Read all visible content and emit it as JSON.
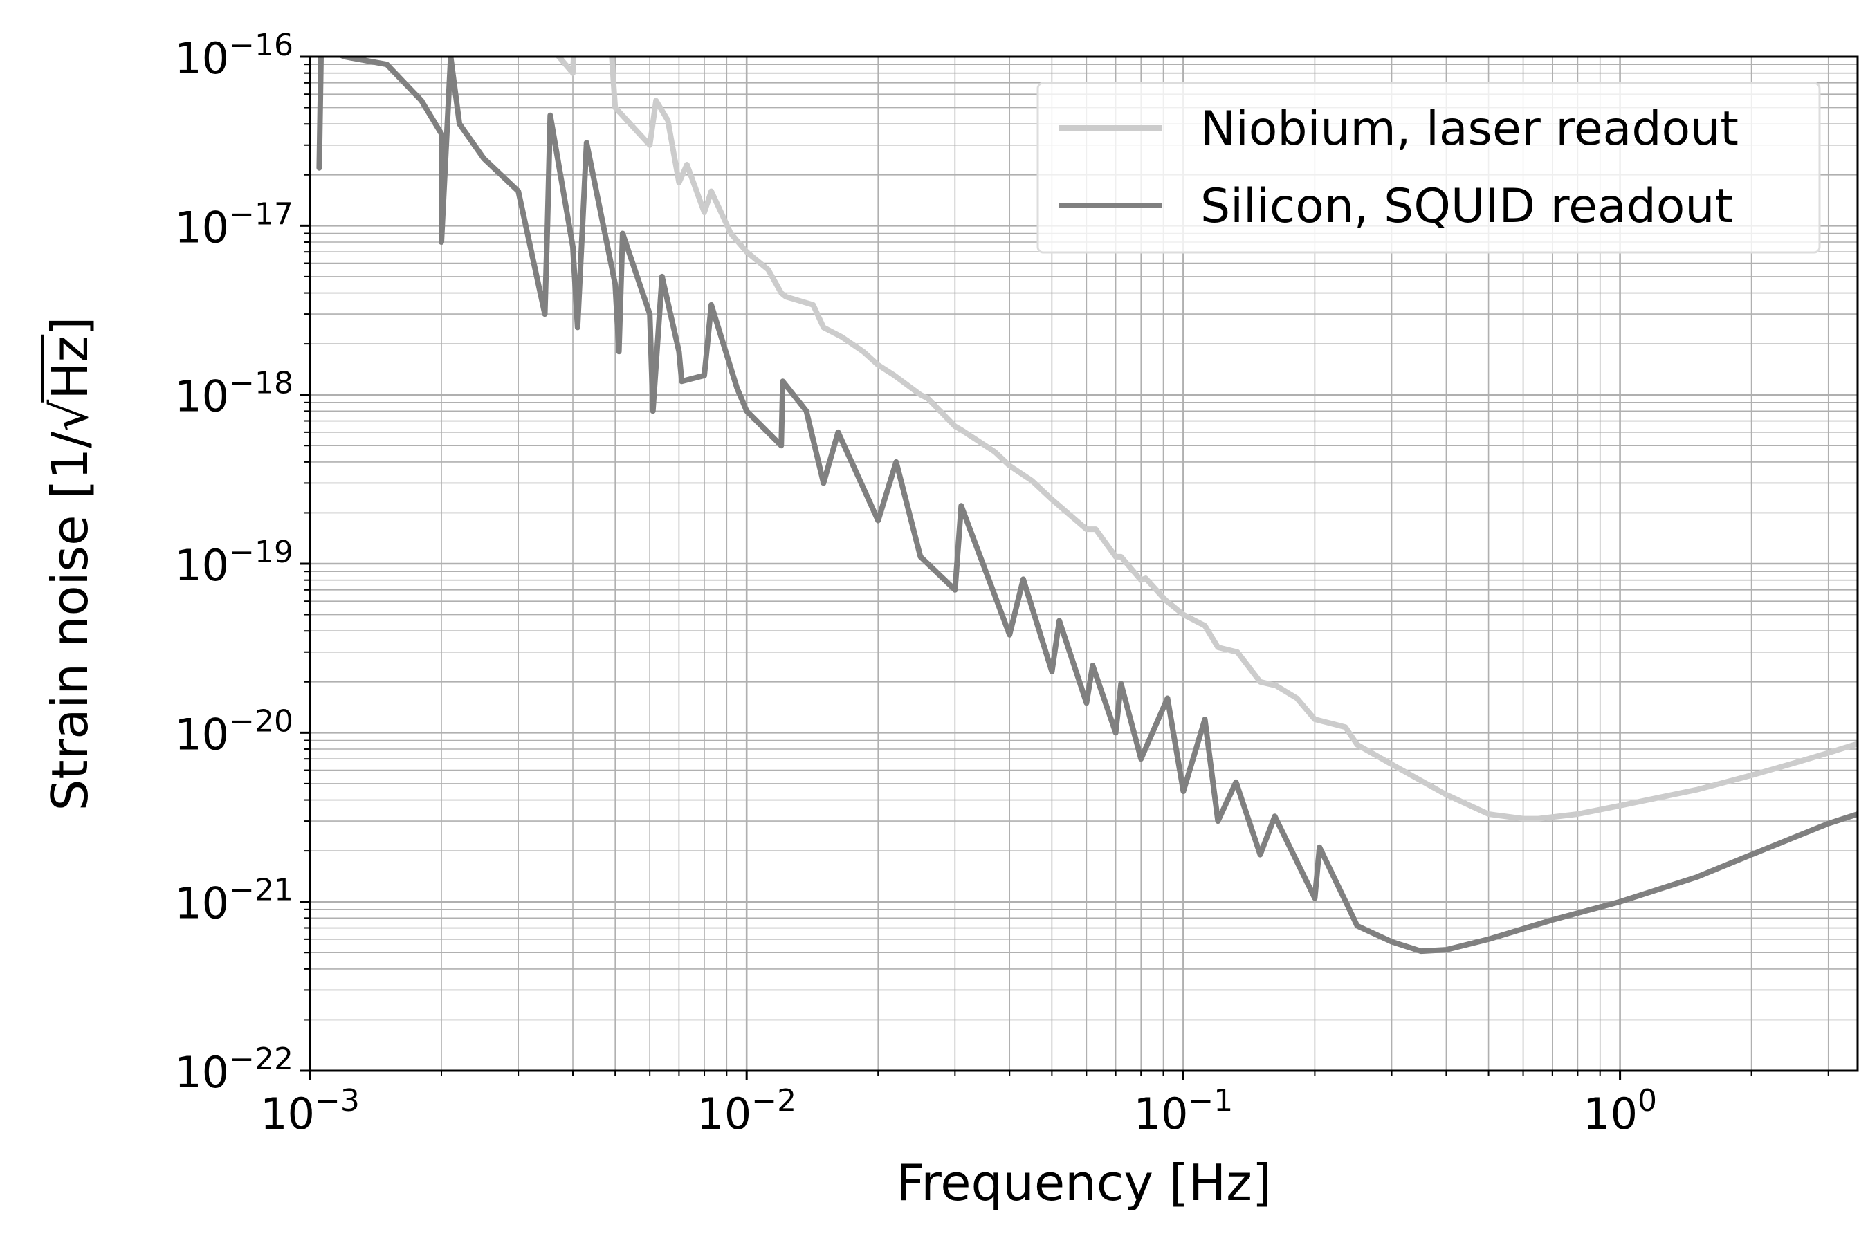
{
  "chart_data": {
    "type": "line",
    "xscale": "log",
    "yscale": "log",
    "xlim": [
      0.001,
      3.5
    ],
    "ylim": [
      1e-22,
      1e-16
    ],
    "xlabel": "Frequency [Hz]",
    "ylabel_prefix": "Strain noise [1/",
    "ylabel_radical": "√",
    "ylabel_radicand": "Hz",
    "ylabel_suffix": "]",
    "x_ticks": [
      {
        "value": 0.001,
        "base": "10",
        "exp": "−3"
      },
      {
        "value": 0.01,
        "base": "10",
        "exp": "−2"
      },
      {
        "value": 0.1,
        "base": "10",
        "exp": "−1"
      },
      {
        "value": 1,
        "base": "10",
        "exp": "0"
      }
    ],
    "y_ticks": [
      {
        "value": 1e-22,
        "base": "10",
        "exp": "−22"
      },
      {
        "value": 1e-21,
        "base": "10",
        "exp": "−21"
      },
      {
        "value": 1e-20,
        "base": "10",
        "exp": "−20"
      },
      {
        "value": 1e-19,
        "base": "10",
        "exp": "−19"
      },
      {
        "value": 1e-18,
        "base": "10",
        "exp": "−18"
      },
      {
        "value": 1e-17,
        "base": "10",
        "exp": "−17"
      },
      {
        "value": 1e-16,
        "base": "10",
        "exp": "−16"
      }
    ],
    "grid": {
      "major": true,
      "minor": true
    },
    "legend_position": "top-right",
    "series": [
      {
        "name": "Niobium, laser readout",
        "color": "#cccccc",
        "points": [
          [
            0.0035,
            1.2e-16
          ],
          [
            0.004,
            8e-17
          ],
          [
            0.005,
            5e-17
          ],
          [
            0.006,
            3e-17
          ],
          [
            0.007,
            1.8e-17
          ],
          [
            0.008,
            1.2e-17
          ],
          [
            0.01,
            7e-18
          ],
          [
            0.012,
            4e-18
          ],
          [
            0.015,
            2.5e-18
          ],
          [
            0.02,
            1.5e-18
          ],
          [
            0.025,
            1e-18
          ],
          [
            0.03,
            6.5e-19
          ],
          [
            0.04,
            3.8e-19
          ],
          [
            0.05,
            2.4e-19
          ],
          [
            0.06,
            1.6e-19
          ],
          [
            0.07,
            1.1e-19
          ],
          [
            0.08,
            8e-20
          ],
          [
            0.1,
            5e-20
          ],
          [
            0.12,
            3.2e-20
          ],
          [
            0.15,
            2e-20
          ],
          [
            0.2,
            1.2e-20
          ],
          [
            0.25,
            8.5e-21
          ],
          [
            0.3,
            6.5e-21
          ],
          [
            0.4,
            4.3e-21
          ],
          [
            0.5,
            3.3e-21
          ],
          [
            0.6,
            3.1e-21
          ],
          [
            0.65,
            3.1e-21
          ],
          [
            0.8,
            3.3e-21
          ],
          [
            1,
            3.7e-21
          ],
          [
            1.5,
            4.6e-21
          ],
          [
            2,
            5.6e-21
          ],
          [
            2.5,
            6.6e-21
          ],
          [
            3,
            7.6e-21
          ],
          [
            3.5,
            8.6e-21
          ]
        ],
        "spikes": [
          [
            0.0041,
            3e-16
          ],
          [
            0.0046,
            2e-16
          ],
          [
            0.0049,
            1.1e-16
          ],
          [
            0.0062,
            5.5e-17
          ],
          [
            0.0066,
            4.2e-17
          ],
          [
            0.0073,
            2.3e-17
          ],
          [
            0.0083,
            1.6e-17
          ],
          [
            0.0092,
            9e-18
          ],
          [
            0.0112,
            5.5e-18
          ],
          [
            0.0123,
            3.8e-18
          ],
          [
            0.0142,
            3.4e-18
          ],
          [
            0.0165,
            2.2e-18
          ],
          [
            0.0185,
            1.8e-18
          ],
          [
            0.0218,
            1.3e-18
          ],
          [
            0.026,
            9.5e-19
          ],
          [
            0.031,
            6.2e-19
          ],
          [
            0.037,
            4.6e-19
          ],
          [
            0.045,
            3.1e-19
          ],
          [
            0.052,
            2.2e-19
          ],
          [
            0.063,
            1.6e-19
          ],
          [
            0.072,
            1.1e-19
          ],
          [
            0.082,
            8.2e-20
          ],
          [
            0.091,
            6.1e-20
          ],
          [
            0.112,
            4.3e-20
          ],
          [
            0.133,
            3e-20
          ],
          [
            0.163,
            1.9e-20
          ],
          [
            0.182,
            1.6e-20
          ],
          [
            0.235,
            1.08e-20
          ]
        ]
      },
      {
        "name": "Silicon, SQUID readout",
        "color": "#808080",
        "points": [
          [
            0.0011,
            1.1e-16
          ],
          [
            0.0012,
            1e-16
          ],
          [
            0.0015,
            9e-17
          ],
          [
            0.0018,
            5.5e-17
          ],
          [
            0.002,
            3.5e-17
          ],
          [
            0.0022,
            4e-17
          ],
          [
            0.0025,
            2.5e-17
          ],
          [
            0.003,
            1.6e-17
          ],
          [
            0.0035,
            1.05e-17
          ],
          [
            0.004,
            7.5e-18
          ],
          [
            0.005,
            4.5e-18
          ],
          [
            0.006,
            3e-18
          ],
          [
            0.007,
            1.8e-18
          ],
          [
            0.008,
            1.3e-18
          ],
          [
            0.01,
            8e-19
          ],
          [
            0.012,
            5e-19
          ],
          [
            0.015,
            3e-19
          ],
          [
            0.02,
            1.8e-19
          ],
          [
            0.025,
            1.1e-19
          ],
          [
            0.03,
            7e-20
          ],
          [
            0.04,
            3.8e-20
          ],
          [
            0.05,
            2.3e-20
          ],
          [
            0.06,
            1.5e-20
          ],
          [
            0.07,
            1e-20
          ],
          [
            0.08,
            7e-21
          ],
          [
            0.1,
            4.5e-21
          ],
          [
            0.12,
            3e-21
          ],
          [
            0.15,
            1.9e-21
          ],
          [
            0.2,
            1.05e-21
          ],
          [
            0.25,
            7.2e-22
          ],
          [
            0.3,
            5.8e-22
          ],
          [
            0.35,
            5.1e-22
          ],
          [
            0.4,
            5.2e-22
          ],
          [
            0.5,
            6e-22
          ],
          [
            0.7,
            7.8e-22
          ],
          [
            1,
            1e-21
          ],
          [
            1.5,
            1.4e-21
          ],
          [
            2,
            1.9e-21
          ],
          [
            2.5,
            2.4e-21
          ],
          [
            3,
            2.9e-21
          ],
          [
            3.5,
            3.3e-21
          ]
        ],
        "spikes": [
          [
            0.00105,
            2.2e-17
          ],
          [
            0.00106,
            1e-16
          ],
          [
            0.002,
            8e-18
          ],
          [
            0.0021,
            1e-16
          ],
          [
            0.00345,
            3e-18
          ],
          [
            0.00355,
            4.5e-17
          ],
          [
            0.0041,
            2.5e-18
          ],
          [
            0.0043,
            3.1e-17
          ],
          [
            0.0051,
            1.8e-18
          ],
          [
            0.0052,
            9e-18
          ],
          [
            0.0061,
            8e-19
          ],
          [
            0.0064,
            5e-18
          ],
          [
            0.0071,
            1.2e-18
          ],
          [
            0.0083,
            3.4e-18
          ],
          [
            0.0095,
            1.1e-18
          ],
          [
            0.0121,
            1.2e-18
          ],
          [
            0.0137,
            8e-19
          ],
          [
            0.0162,
            6e-19
          ],
          [
            0.022,
            4e-19
          ],
          [
            0.031,
            2.2e-19
          ],
          [
            0.043,
            8.1e-20
          ],
          [
            0.052,
            4.6e-20
          ],
          [
            0.062,
            2.5e-20
          ],
          [
            0.072,
            1.95e-20
          ],
          [
            0.092,
            1.6e-20
          ],
          [
            0.112,
            1.2e-20
          ],
          [
            0.132,
            5.1e-21
          ],
          [
            0.162,
            3.2e-21
          ],
          [
            0.205,
            2.1e-21
          ],
          [
            0.24,
            9e-22
          ]
        ]
      }
    ]
  }
}
